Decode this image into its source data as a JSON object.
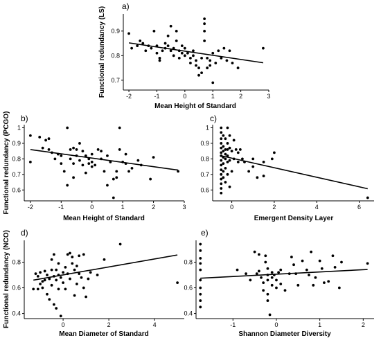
{
  "chart_data": [
    {
      "panel": "a)",
      "type": "scatter",
      "xlabel": "Mean Height of Standard",
      "ylabel": "Functional redundancy (LS)",
      "xlim": [
        -2.2,
        3.0
      ],
      "ylim": [
        0.66,
        0.97
      ],
      "xticks": [
        -2,
        -1,
        0,
        1,
        2,
        3
      ],
      "yticks": [
        0.7,
        0.8,
        0.9
      ],
      "trend": [
        [
          -2.0,
          0.852
        ],
        [
          2.8,
          0.771
        ]
      ],
      "points": [
        [
          -2.0,
          0.89
        ],
        [
          -1.9,
          0.83
        ],
        [
          -1.7,
          0.84
        ],
        [
          -1.6,
          0.86
        ],
        [
          -1.5,
          0.85
        ],
        [
          -1.4,
          0.82
        ],
        [
          -1.3,
          0.84
        ],
        [
          -1.2,
          0.83
        ],
        [
          -1.1,
          0.9
        ],
        [
          -1.0,
          0.84
        ],
        [
          -1.0,
          0.81
        ],
        [
          -0.9,
          0.79
        ],
        [
          -0.9,
          0.78
        ],
        [
          -0.8,
          0.82
        ],
        [
          -0.7,
          0.85
        ],
        [
          -0.7,
          0.83
        ],
        [
          -0.6,
          0.84
        ],
        [
          -0.6,
          0.88
        ],
        [
          -0.5,
          0.92
        ],
        [
          -0.5,
          0.82
        ],
        [
          -0.4,
          0.83
        ],
        [
          -0.4,
          0.8
        ],
        [
          -0.3,
          0.9
        ],
        [
          -0.3,
          0.86
        ],
        [
          -0.2,
          0.82
        ],
        [
          -0.2,
          0.79
        ],
        [
          -0.1,
          0.84
        ],
        [
          -0.1,
          0.81
        ],
        [
          0.0,
          0.83
        ],
        [
          0.0,
          0.8
        ],
        [
          0.1,
          0.81
        ],
        [
          0.2,
          0.79
        ],
        [
          0.2,
          0.77
        ],
        [
          0.3,
          0.82
        ],
        [
          0.3,
          0.8
        ],
        [
          0.4,
          0.76
        ],
        [
          0.4,
          0.78
        ],
        [
          0.5,
          0.72
        ],
        [
          0.6,
          0.73
        ],
        [
          0.6,
          0.79
        ],
        [
          0.7,
          0.95
        ],
        [
          0.7,
          0.93
        ],
        [
          0.7,
          0.9
        ],
        [
          0.7,
          0.86
        ],
        [
          0.8,
          0.79
        ],
        [
          0.8,
          0.75
        ],
        [
          0.9,
          0.78
        ],
        [
          0.9,
          0.76
        ],
        [
          1.0,
          0.69
        ],
        [
          1.0,
          0.81
        ],
        [
          1.1,
          0.77
        ],
        [
          1.2,
          0.82
        ],
        [
          1.3,
          0.79
        ],
        [
          1.4,
          0.83
        ],
        [
          1.5,
          0.78
        ],
        [
          1.6,
          0.82
        ],
        [
          1.7,
          0.77
        ],
        [
          1.9,
          0.75
        ],
        [
          2.8,
          0.83
        ],
        [
          0.5,
          0.75
        ]
      ]
    },
    {
      "panel": "b)",
      "type": "scatter",
      "xlabel": "Mean Height of Standard",
      "ylabel": "Functional redundancy (PCGO)",
      "xlim": [
        -2.2,
        3.0
      ],
      "ylim": [
        0.53,
        1.02
      ],
      "xticks": [
        -2,
        -1,
        0,
        1,
        2,
        3
      ],
      "yticks": [
        0.6,
        0.7,
        0.8,
        0.9,
        1.0
      ],
      "trend": [
        [
          -2.0,
          0.86
        ],
        [
          2.8,
          0.728
        ]
      ],
      "points": [
        [
          -2.0,
          0.95
        ],
        [
          -2.0,
          0.78
        ],
        [
          -1.7,
          0.94
        ],
        [
          -1.6,
          0.87
        ],
        [
          -1.5,
          0.92
        ],
        [
          -1.4,
          0.86
        ],
        [
          -1.4,
          0.93
        ],
        [
          -1.3,
          0.84
        ],
        [
          -1.2,
          0.8
        ],
        [
          -1.1,
          0.83
        ],
        [
          -1.0,
          0.82
        ],
        [
          -1.0,
          0.77
        ],
        [
          -0.9,
          0.72
        ],
        [
          -0.8,
          1.0
        ],
        [
          -0.8,
          0.63
        ],
        [
          -0.7,
          0.86
        ],
        [
          -0.7,
          0.8
        ],
        [
          -0.6,
          0.87
        ],
        [
          -0.6,
          0.68
        ],
        [
          -0.5,
          0.86
        ],
        [
          -0.5,
          0.82
        ],
        [
          -0.4,
          0.79
        ],
        [
          -0.4,
          0.9
        ],
        [
          -0.3,
          0.85
        ],
        [
          -0.3,
          0.76
        ],
        [
          -0.2,
          0.82
        ],
        [
          -0.2,
          0.71
        ],
        [
          -0.1,
          0.8
        ],
        [
          -0.1,
          0.77
        ],
        [
          0.0,
          0.83
        ],
        [
          0.0,
          0.78
        ],
        [
          0.1,
          0.76
        ],
        [
          0.2,
          0.86
        ],
        [
          0.3,
          0.85
        ],
        [
          0.3,
          0.8
        ],
        [
          0.4,
          0.72
        ],
        [
          0.5,
          0.82
        ],
        [
          0.5,
          0.63
        ],
        [
          0.6,
          0.78
        ],
        [
          0.7,
          0.67
        ],
        [
          0.7,
          0.55
        ],
        [
          0.8,
          0.68
        ],
        [
          0.8,
          0.72
        ],
        [
          0.9,
          0.86
        ],
        [
          0.9,
          1.0
        ],
        [
          1.0,
          0.78
        ],
        [
          1.1,
          0.83
        ],
        [
          1.1,
          0.77
        ],
        [
          1.2,
          0.72
        ],
        [
          1.3,
          0.74
        ],
        [
          1.5,
          0.79
        ],
        [
          1.6,
          0.76
        ],
        [
          1.9,
          0.67
        ],
        [
          2.0,
          0.81
        ],
        [
          2.8,
          0.72
        ],
        [
          0.0,
          0.75
        ],
        [
          -0.6,
          0.77
        ]
      ]
    },
    {
      "panel": "c)",
      "type": "scatter",
      "xlabel": "Emergent Density Layer",
      "ylabel": "",
      "xlim": [
        -0.9,
        6.7
      ],
      "ylim": [
        0.53,
        1.02
      ],
      "xticks": [
        0,
        2,
        4,
        6
      ],
      "yticks": [
        0.6,
        0.7,
        0.8,
        0.9,
        1.0
      ],
      "trend": [
        [
          -0.5,
          0.82
        ],
        [
          6.4,
          0.608
        ]
      ],
      "points": [
        [
          -0.5,
          1.0
        ],
        [
          -0.5,
          0.97
        ],
        [
          -0.5,
          0.93
        ],
        [
          -0.5,
          0.9
        ],
        [
          -0.5,
          0.87
        ],
        [
          -0.5,
          0.84
        ],
        [
          -0.5,
          0.82
        ],
        [
          -0.5,
          0.79
        ],
        [
          -0.5,
          0.76
        ],
        [
          -0.5,
          0.73
        ],
        [
          -0.5,
          0.7
        ],
        [
          -0.5,
          0.67
        ],
        [
          -0.5,
          0.64
        ],
        [
          -0.5,
          0.61
        ],
        [
          -0.4,
          0.95
        ],
        [
          -0.4,
          0.88
        ],
        [
          -0.4,
          0.85
        ],
        [
          -0.4,
          0.81
        ],
        [
          -0.4,
          0.77
        ],
        [
          -0.4,
          0.72
        ],
        [
          -0.4,
          0.68
        ],
        [
          -0.3,
          0.93
        ],
        [
          -0.3,
          0.86
        ],
        [
          -0.3,
          0.83
        ],
        [
          -0.3,
          0.8
        ],
        [
          -0.3,
          0.74
        ],
        [
          -0.3,
          0.65
        ],
        [
          -0.2,
          1.0
        ],
        [
          -0.2,
          0.9
        ],
        [
          -0.2,
          0.86
        ],
        [
          -0.2,
          0.82
        ],
        [
          -0.2,
          0.78
        ],
        [
          -0.2,
          0.7
        ],
        [
          -0.1,
          0.95
        ],
        [
          -0.1,
          0.87
        ],
        [
          -0.1,
          0.79
        ],
        [
          -0.1,
          0.62
        ],
        [
          0.0,
          0.85
        ],
        [
          0.0,
          0.72
        ],
        [
          0.1,
          0.92
        ],
        [
          0.1,
          0.8
        ],
        [
          0.2,
          0.86
        ],
        [
          0.3,
          0.84
        ],
        [
          0.3,
          0.78
        ],
        [
          0.4,
          0.86
        ],
        [
          0.5,
          0.8
        ],
        [
          0.6,
          0.78
        ],
        [
          0.8,
          0.72
        ],
        [
          1.0,
          0.8
        ],
        [
          1.0,
          0.75
        ],
        [
          1.2,
          0.68
        ],
        [
          1.5,
          0.78
        ],
        [
          1.5,
          0.69
        ],
        [
          1.9,
          0.8
        ],
        [
          2.0,
          0.84
        ],
        [
          6.4,
          0.55
        ],
        [
          -0.5,
          0.58
        ]
      ]
    },
    {
      "panel": "d)",
      "type": "scatter",
      "xlabel": "Mean Diameter of Standard",
      "ylabel": "Functional redundancy (NCO)",
      "xlim": [
        -1.7,
        5.3
      ],
      "ylim": [
        0.36,
        0.97
      ],
      "xticks": [
        0,
        2,
        4
      ],
      "yticks": [
        0.4,
        0.6,
        0.8
      ],
      "trend": [
        [
          -1.3,
          0.66
        ],
        [
          5.0,
          0.856
        ]
      ],
      "points": [
        [
          -1.3,
          0.59
        ],
        [
          -1.2,
          0.71
        ],
        [
          -1.1,
          0.69
        ],
        [
          -1.1,
          0.59
        ],
        [
          -1.0,
          0.63
        ],
        [
          -0.9,
          0.6
        ],
        [
          -0.9,
          0.65
        ],
        [
          -0.8,
          0.66
        ],
        [
          -0.8,
          0.73
        ],
        [
          -0.7,
          0.7
        ],
        [
          -0.7,
          0.55
        ],
        [
          -0.6,
          0.67
        ],
        [
          -0.6,
          0.51
        ],
        [
          -0.5,
          0.74
        ],
        [
          -0.5,
          0.82
        ],
        [
          -0.5,
          0.62
        ],
        [
          -0.4,
          0.86
        ],
        [
          -0.4,
          0.69
        ],
        [
          -0.4,
          0.47
        ],
        [
          -0.3,
          0.74
        ],
        [
          -0.3,
          0.66
        ],
        [
          -0.2,
          0.79
        ],
        [
          -0.2,
          0.7
        ],
        [
          -0.2,
          0.59
        ],
        [
          -0.1,
          0.68
        ],
        [
          -0.1,
          0.38
        ],
        [
          0.0,
          0.72
        ],
        [
          0.0,
          0.64
        ],
        [
          0.1,
          0.76
        ],
        [
          0.1,
          0.59
        ],
        [
          0.2,
          0.86
        ],
        [
          0.2,
          0.71
        ],
        [
          0.3,
          0.87
        ],
        [
          0.3,
          0.67
        ],
        [
          0.4,
          0.84
        ],
        [
          0.4,
          0.79
        ],
        [
          0.5,
          0.74
        ],
        [
          0.5,
          0.54
        ],
        [
          0.6,
          0.63
        ],
        [
          0.7,
          0.85
        ],
        [
          0.7,
          0.71
        ],
        [
          0.8,
          0.68
        ],
        [
          0.9,
          0.6
        ],
        [
          0.9,
          0.86
        ],
        [
          1.0,
          0.53
        ],
        [
          1.1,
          0.67
        ],
        [
          1.2,
          0.72
        ],
        [
          1.5,
          0.7
        ],
        [
          1.8,
          0.82
        ],
        [
          2.5,
          0.94
        ],
        [
          5.0,
          0.64
        ],
        [
          -0.3,
          0.44
        ],
        [
          0.6,
          0.77
        ],
        [
          -1.0,
          0.72
        ]
      ]
    },
    {
      "panel": "e)",
      "type": "scatter",
      "xlabel": "Shannon Diameter Diversity",
      "ylabel": "",
      "xlim": [
        -1.85,
        2.25
      ],
      "ylim": [
        0.36,
        0.97
      ],
      "xticks": [
        -1,
        0,
        1,
        2
      ],
      "yticks": [
        0.4,
        0.6,
        0.8
      ],
      "trend": [
        [
          -1.75,
          0.675
        ],
        [
          2.1,
          0.743
        ]
      ],
      "points": [
        [
          -1.75,
          0.94
        ],
        [
          -1.75,
          0.89
        ],
        [
          -1.75,
          0.83
        ],
        [
          -1.75,
          0.79
        ],
        [
          -1.75,
          0.74
        ],
        [
          -1.75,
          0.66
        ],
        [
          -1.75,
          0.6
        ],
        [
          -1.75,
          0.55
        ],
        [
          -1.75,
          0.5
        ],
        [
          -1.75,
          0.45
        ],
        [
          -0.9,
          0.74
        ],
        [
          -0.7,
          0.71
        ],
        [
          -0.6,
          0.66
        ],
        [
          -0.5,
          0.88
        ],
        [
          -0.45,
          0.71
        ],
        [
          -0.4,
          0.86
        ],
        [
          -0.4,
          0.73
        ],
        [
          -0.35,
          0.68
        ],
        [
          -0.3,
          0.64
        ],
        [
          -0.3,
          0.58
        ],
        [
          -0.25,
          0.85
        ],
        [
          -0.25,
          0.8
        ],
        [
          -0.2,
          0.75
        ],
        [
          -0.2,
          0.7
        ],
        [
          -0.2,
          0.66
        ],
        [
          -0.2,
          0.55
        ],
        [
          -0.2,
          0.5
        ],
        [
          -0.1,
          0.72
        ],
        [
          -0.1,
          0.68
        ],
        [
          -0.1,
          0.62
        ],
        [
          0.0,
          0.66
        ],
        [
          0.0,
          0.6
        ],
        [
          0.1,
          0.74
        ],
        [
          0.1,
          0.63
        ],
        [
          0.2,
          0.58
        ],
        [
          0.3,
          0.71
        ],
        [
          0.35,
          0.84
        ],
        [
          0.4,
          0.78
        ],
        [
          0.45,
          0.71
        ],
        [
          0.5,
          0.62
        ],
        [
          0.6,
          0.81
        ],
        [
          0.7,
          0.74
        ],
        [
          0.75,
          0.7
        ],
        [
          0.8,
          0.88
        ],
        [
          0.85,
          0.62
        ],
        [
          0.9,
          0.68
        ],
        [
          1.0,
          0.81
        ],
        [
          1.05,
          0.75
        ],
        [
          1.1,
          0.64
        ],
        [
          1.2,
          0.65
        ],
        [
          1.3,
          0.85
        ],
        [
          1.35,
          0.76
        ],
        [
          1.45,
          0.6
        ],
        [
          1.5,
          0.8
        ],
        [
          2.1,
          0.79
        ],
        [
          -0.15,
          0.39
        ],
        [
          -0.05,
          0.7
        ],
        [
          0.05,
          0.72
        ]
      ]
    }
  ]
}
